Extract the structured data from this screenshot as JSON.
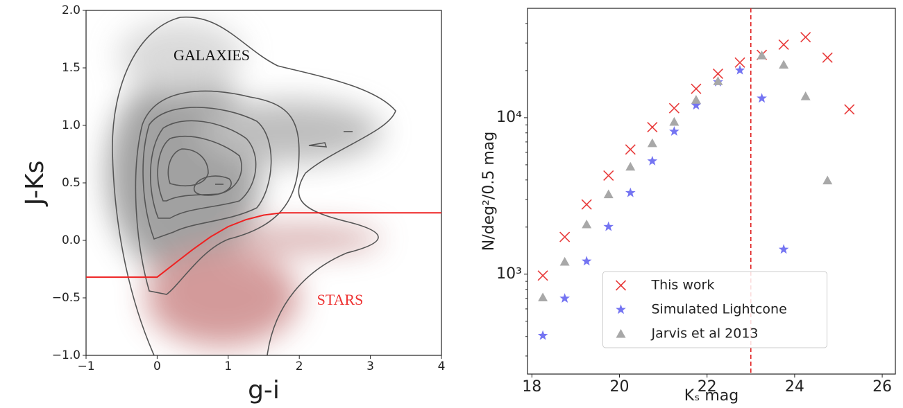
{
  "chart_data": [
    {
      "type": "line",
      "xlabel": "g-i",
      "ylabel": "J-Ks",
      "xlim": [
        -1,
        4
      ],
      "ylim": [
        -1,
        2
      ],
      "xticks": [
        {
          "value": -1,
          "label": "−1"
        },
        0,
        1,
        2,
        3,
        4
      ],
      "yticks": [
        {
          "value": -1,
          "label": "−1.0"
        },
        {
          "value": -0.5,
          "label": "−0.5"
        },
        {
          "value": 0,
          "label": "0.0"
        },
        {
          "value": 0.5,
          "label": "0.5"
        },
        {
          "value": 1,
          "label": "1.0"
        },
        {
          "value": 1.5,
          "label": "1.5"
        },
        {
          "value": 2,
          "label": "2.0"
        }
      ],
      "annotations": [
        {
          "text": "GALAXIES",
          "color": "#111111"
        },
        {
          "text": "STARS",
          "color": "#ee3333"
        }
      ],
      "series": [
        {
          "color": "#ee2222",
          "x": [
            -1,
            0,
            0.25,
            0.5,
            0.75,
            1,
            1.25,
            1.5,
            1.75,
            2,
            4
          ],
          "values": [
            -0.32,
            -0.32,
            -0.2,
            -0.08,
            0.03,
            0.12,
            0.18,
            0.22,
            0.24,
            0.24,
            0.24
          ]
        }
      ]
    },
    {
      "type": "scatter",
      "log_y": true,
      "xlabel": "Kₛ mag",
      "ylabel": "N/deg²/0.5 mag",
      "xlim": [
        17.9,
        26.3
      ],
      "ylim": [
        230,
        50000
      ],
      "xticks": [
        18,
        20,
        22,
        24,
        26
      ],
      "yticks": [
        {
          "value": 1000,
          "label": "10³"
        },
        {
          "value": 10000,
          "label": "10⁴"
        }
      ],
      "legend": "lower center",
      "vline": {
        "x": 23,
        "color": "#e02020"
      },
      "x": [
        18.25,
        18.75,
        19.25,
        19.75,
        20.25,
        20.75,
        21.25,
        21.75,
        22.25,
        22.75,
        23.25,
        23.75,
        24.25,
        24.75,
        25.25
      ],
      "series": [
        {
          "name": "This work",
          "color": "#e83a3a",
          "marker": "x",
          "values": [
            980,
            1730,
            2790,
            4270,
            6260,
            8700,
            11500,
            15300,
            19100,
            22500,
            25200,
            29300,
            32700,
            24200,
            11300
          ]
        },
        {
          "name": "Simulated Lightcone",
          "color": "#5c5cf0",
          "marker": "star",
          "values": [
            405,
            700,
            1210,
            2010,
            3310,
            5280,
            8170,
            12000,
            16900,
            20100,
            13300,
            1440,
            null,
            null,
            null
          ]
        },
        {
          "name": "Jarvis et al 2013",
          "color": "#a8a8a8",
          "marker": "triangle",
          "values": [
            710,
            1200,
            2080,
            3240,
            4860,
            6870,
            9410,
            13000,
            17100,
            null,
            25000,
            21800,
            13700,
            3970,
            null
          ]
        }
      ]
    }
  ]
}
